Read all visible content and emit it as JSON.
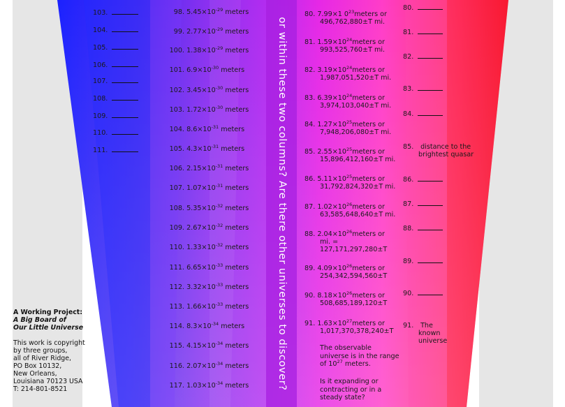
{
  "colors": {
    "blue": "#1b1fe6",
    "violet": "#9a2cf2",
    "magenta": "#f01ecc",
    "pink": "#ff4aa8",
    "red": "#f5162d",
    "grey": "#e6e6e6"
  },
  "col1": [
    {
      "n": "103."
    },
    {
      "n": "104."
    },
    {
      "n": "105."
    },
    {
      "n": "106."
    },
    {
      "n": "107."
    },
    {
      "n": "108."
    },
    {
      "n": "109."
    },
    {
      "n": "110."
    },
    {
      "n": "111."
    }
  ],
  "col2": [
    {
      "n": "98.",
      "m": "5.45×10",
      "e": "-29",
      "u": "meters"
    },
    {
      "n": "99.",
      "m": "2.77×10",
      "e": "-29",
      "u": "meters"
    },
    {
      "n": "100.",
      "m": "1.38×10",
      "e": "-29",
      "u": "meters"
    },
    {
      "n": "101.",
      "m": "6.9×10",
      "e": "-30",
      "u": "meters"
    },
    {
      "n": "102.",
      "m": "3.45×10",
      "e": "-30",
      "u": "meters"
    },
    {
      "n": "103.",
      "m": "1.72×10",
      "e": "-30",
      "u": "meters"
    },
    {
      "n": "104.",
      "m": "8.6×10",
      "e": "-31",
      "u": "meters"
    },
    {
      "n": "105.",
      "m": "4.3×10",
      "e": "-31",
      "u": "meters"
    },
    {
      "n": "106.",
      "m": "2.15×10",
      "e": "-31",
      "u": "meters"
    },
    {
      "n": "107.",
      "m": "1.07×10",
      "e": "-31",
      "u": "meters"
    },
    {
      "n": "108.",
      "m": "5.35×10",
      "e": "-32",
      "u": "meters"
    },
    {
      "n": "109.",
      "m": "2.67×10",
      "e": "-32",
      "u": "meters"
    },
    {
      "n": "110.",
      "m": "1.33×10",
      "e": "-32",
      "u": "meters"
    },
    {
      "n": "111.",
      "m": "6.65×10",
      "e": "-33",
      "u": "meters"
    },
    {
      "n": "112.",
      "m": "3.32×10",
      "e": "-33",
      "u": "meters"
    },
    {
      "n": "113.",
      "m": "1.66×10",
      "e": "-33",
      "u": "meters"
    },
    {
      "n": "114.",
      "m": "8.3×10",
      "e": "-34",
      "u": "meters"
    },
    {
      "n": "115.",
      "m": "4.15×10",
      "e": "-34",
      "u": "meters"
    },
    {
      "n": "116.",
      "m": "2.07×10",
      "e": "-34",
      "u": "meters"
    },
    {
      "n": "117.",
      "m": "1.03×10",
      "e": "-34",
      "u": "meters"
    }
  ],
  "vertical_text": "or within these two columns?  Are there other universes to discover?",
  "col3": [
    {
      "n": "80.",
      "m": "7.99×1 0",
      "e": "23",
      "u": "meters or",
      "l2": "496,762,880±T mi."
    },
    {
      "n": "81.",
      "m": "1.59×10",
      "e": "24",
      "u": "meters or",
      "l2": "993,525,760±T mi."
    },
    {
      "n": "82.",
      "m": "3.19×10",
      "e": "24",
      "u": "meters or",
      "l2": "1,987,051,520±T mi."
    },
    {
      "n": "83.",
      "m": "6.39×10",
      "e": "24",
      "u": "meters or",
      "l2": "3,974,103,040±T mi."
    },
    {
      "n": "84.",
      "m": "1.27×10",
      "e": "25",
      "u": "meters or",
      "l2": "7,948,206,080±T mi."
    },
    {
      "n": "85.",
      "m": "2.55×10",
      "e": "25",
      "u": "meters or",
      "l2": "15,896,412,160±T mi."
    },
    {
      "n": "86.",
      "m": "5.11×10",
      "e": "25",
      "u": "meters or",
      "l2": "31,792,824,320±T mi."
    },
    {
      "n": "87.",
      "m": "1.02×10",
      "e": "26",
      "u": "meters or",
      "l2": "63,585,648,640±T mi."
    },
    {
      "n": "88.",
      "m": "2.04×10",
      "e": "26",
      "u": "meters or",
      "l2": "mi. =",
      "l3": "127,171,297,280±T"
    },
    {
      "n": "89.",
      "m": "4.09×10",
      "e": "26",
      "u": "meters or",
      "l2": "254,342,594,560±T"
    },
    {
      "n": "90.",
      "m": "8.18×10",
      "e": "26",
      "u": "meters or",
      "l2": "508,685,189,120±T"
    },
    {
      "n": "91.",
      "m": "1.63×10",
      "e": "27",
      "u": "meters or",
      "l2": "1,017,370,378,240±T"
    }
  ],
  "note1": {
    "l1": "The observable",
    "l2": "universe is in the range",
    "l3a": "of 10",
    "l3e": "27",
    "l3b": " meters."
  },
  "note2": {
    "l1": "Is it expanding or",
    "l2": "contracting or in a",
    "l3": "steady state?"
  },
  "col4": [
    {
      "n": "80."
    },
    {
      "n": "81."
    },
    {
      "n": "82."
    },
    {
      "n": "83."
    },
    {
      "n": "84."
    },
    {
      "n": "85.",
      "t1": "distance to the",
      "t2": "brightest quasar"
    },
    {
      "n": "86."
    },
    {
      "n": "87."
    },
    {
      "n": "88."
    },
    {
      "n": "89."
    },
    {
      "n": "90."
    },
    {
      "n": "91.",
      "t1": "The",
      "t2": "known",
      "t3": "universe"
    }
  ],
  "credit": {
    "title": "A Working Project:",
    "sub1": "A Big Board of",
    "sub2": "Our Little Universe",
    "body": [
      "This work is copyright",
      "by three groups,",
      "all of River Ridge,",
      "PO Box 10132,",
      "New Orleans,",
      "Louisiana 70123 USA",
      "T: 214-801-8521"
    ]
  }
}
